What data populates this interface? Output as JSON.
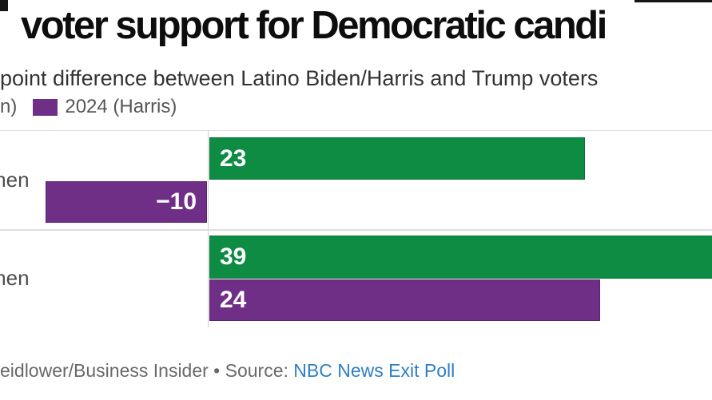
{
  "header": {
    "title": "voter support for Democratic candi",
    "subtitle": "point difference between Latino Biden/Harris and Trump voters"
  },
  "legend": {
    "items": [
      {
        "label": "n)",
        "swatch_color": null,
        "note": "left portion of first legend entry clipped off screen"
      },
      {
        "label": "2024 (Harris)",
        "swatch_color": "#702f86"
      }
    ]
  },
  "chart_data": {
    "type": "bar",
    "orientation": "horizontal",
    "categories": [
      "men",
      "men"
    ],
    "series": [
      {
        "name": "n)",
        "color": "#0e8c44",
        "values": [
          23,
          39
        ]
      },
      {
        "name": "2024 (Harris)",
        "color": "#702f86",
        "values": [
          -10,
          24
        ]
      }
    ],
    "value_labels": [
      [
        "23",
        "39"
      ],
      [
        "−10",
        "24"
      ]
    ],
    "title": "voter support for Democratic candi",
    "subtitle": "point difference between Latino Biden/Harris and Trump voters",
    "xlabel": "",
    "ylabel": "",
    "x_axis": {
      "ticks_visible": false,
      "zero_baseline": true
    },
    "grid": "row separator lines only",
    "legend_position": "top-left",
    "layout_note": "diverging horizontal bars from zero baseline; green 39 bar runs past right image edge; category labels and first legend entry clipped at left image edge"
  },
  "footer": {
    "credit_text": "eidlower/Business Insider • Source: ",
    "source_link_text": "NBC News Exit Poll"
  },
  "colors": {
    "bar_green": "#0e8c44",
    "bar_purple": "#702f86",
    "link_blue": "#2e7fc4",
    "subtitle_text": "#333333",
    "legend_text": "#565656",
    "category_text": "#4d4d4d",
    "footer_text": "#696969",
    "separator": "#dedede",
    "background": "#ffffff"
  }
}
